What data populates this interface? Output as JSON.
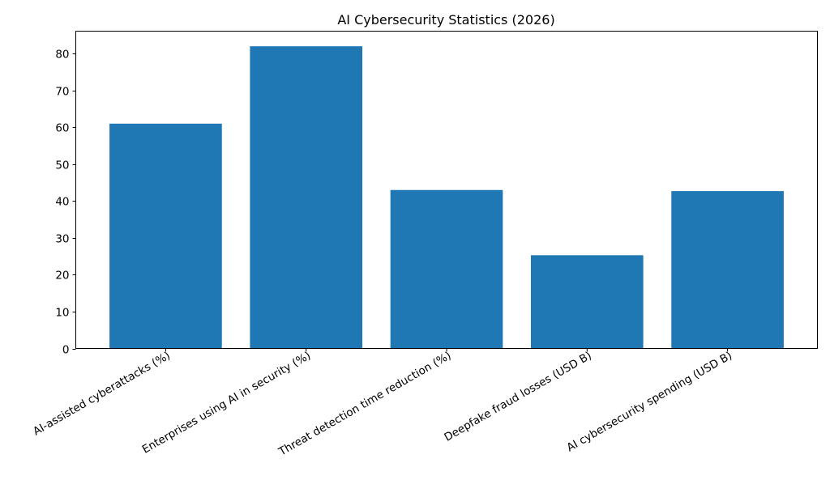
{
  "chart_data": {
    "type": "bar",
    "title": "AI Cybersecurity Statistics (2026)",
    "xlabel": "",
    "ylabel": "",
    "categories": [
      "AI-assisted cyberattacks (%)",
      "Enterprises using AI in security (%)",
      "Threat detection time reduction (%)",
      "Deepfake fraud losses (USD B)",
      "AI cybersecurity spending (USD B)"
    ],
    "values": [
      61,
      82,
      43,
      25.3,
      42.7
    ],
    "ylim": [
      0,
      86.1
    ],
    "yticks": [
      0,
      10,
      20,
      30,
      40,
      50,
      60,
      70,
      80
    ],
    "grid": false,
    "bar_color": "#1f77b4"
  }
}
